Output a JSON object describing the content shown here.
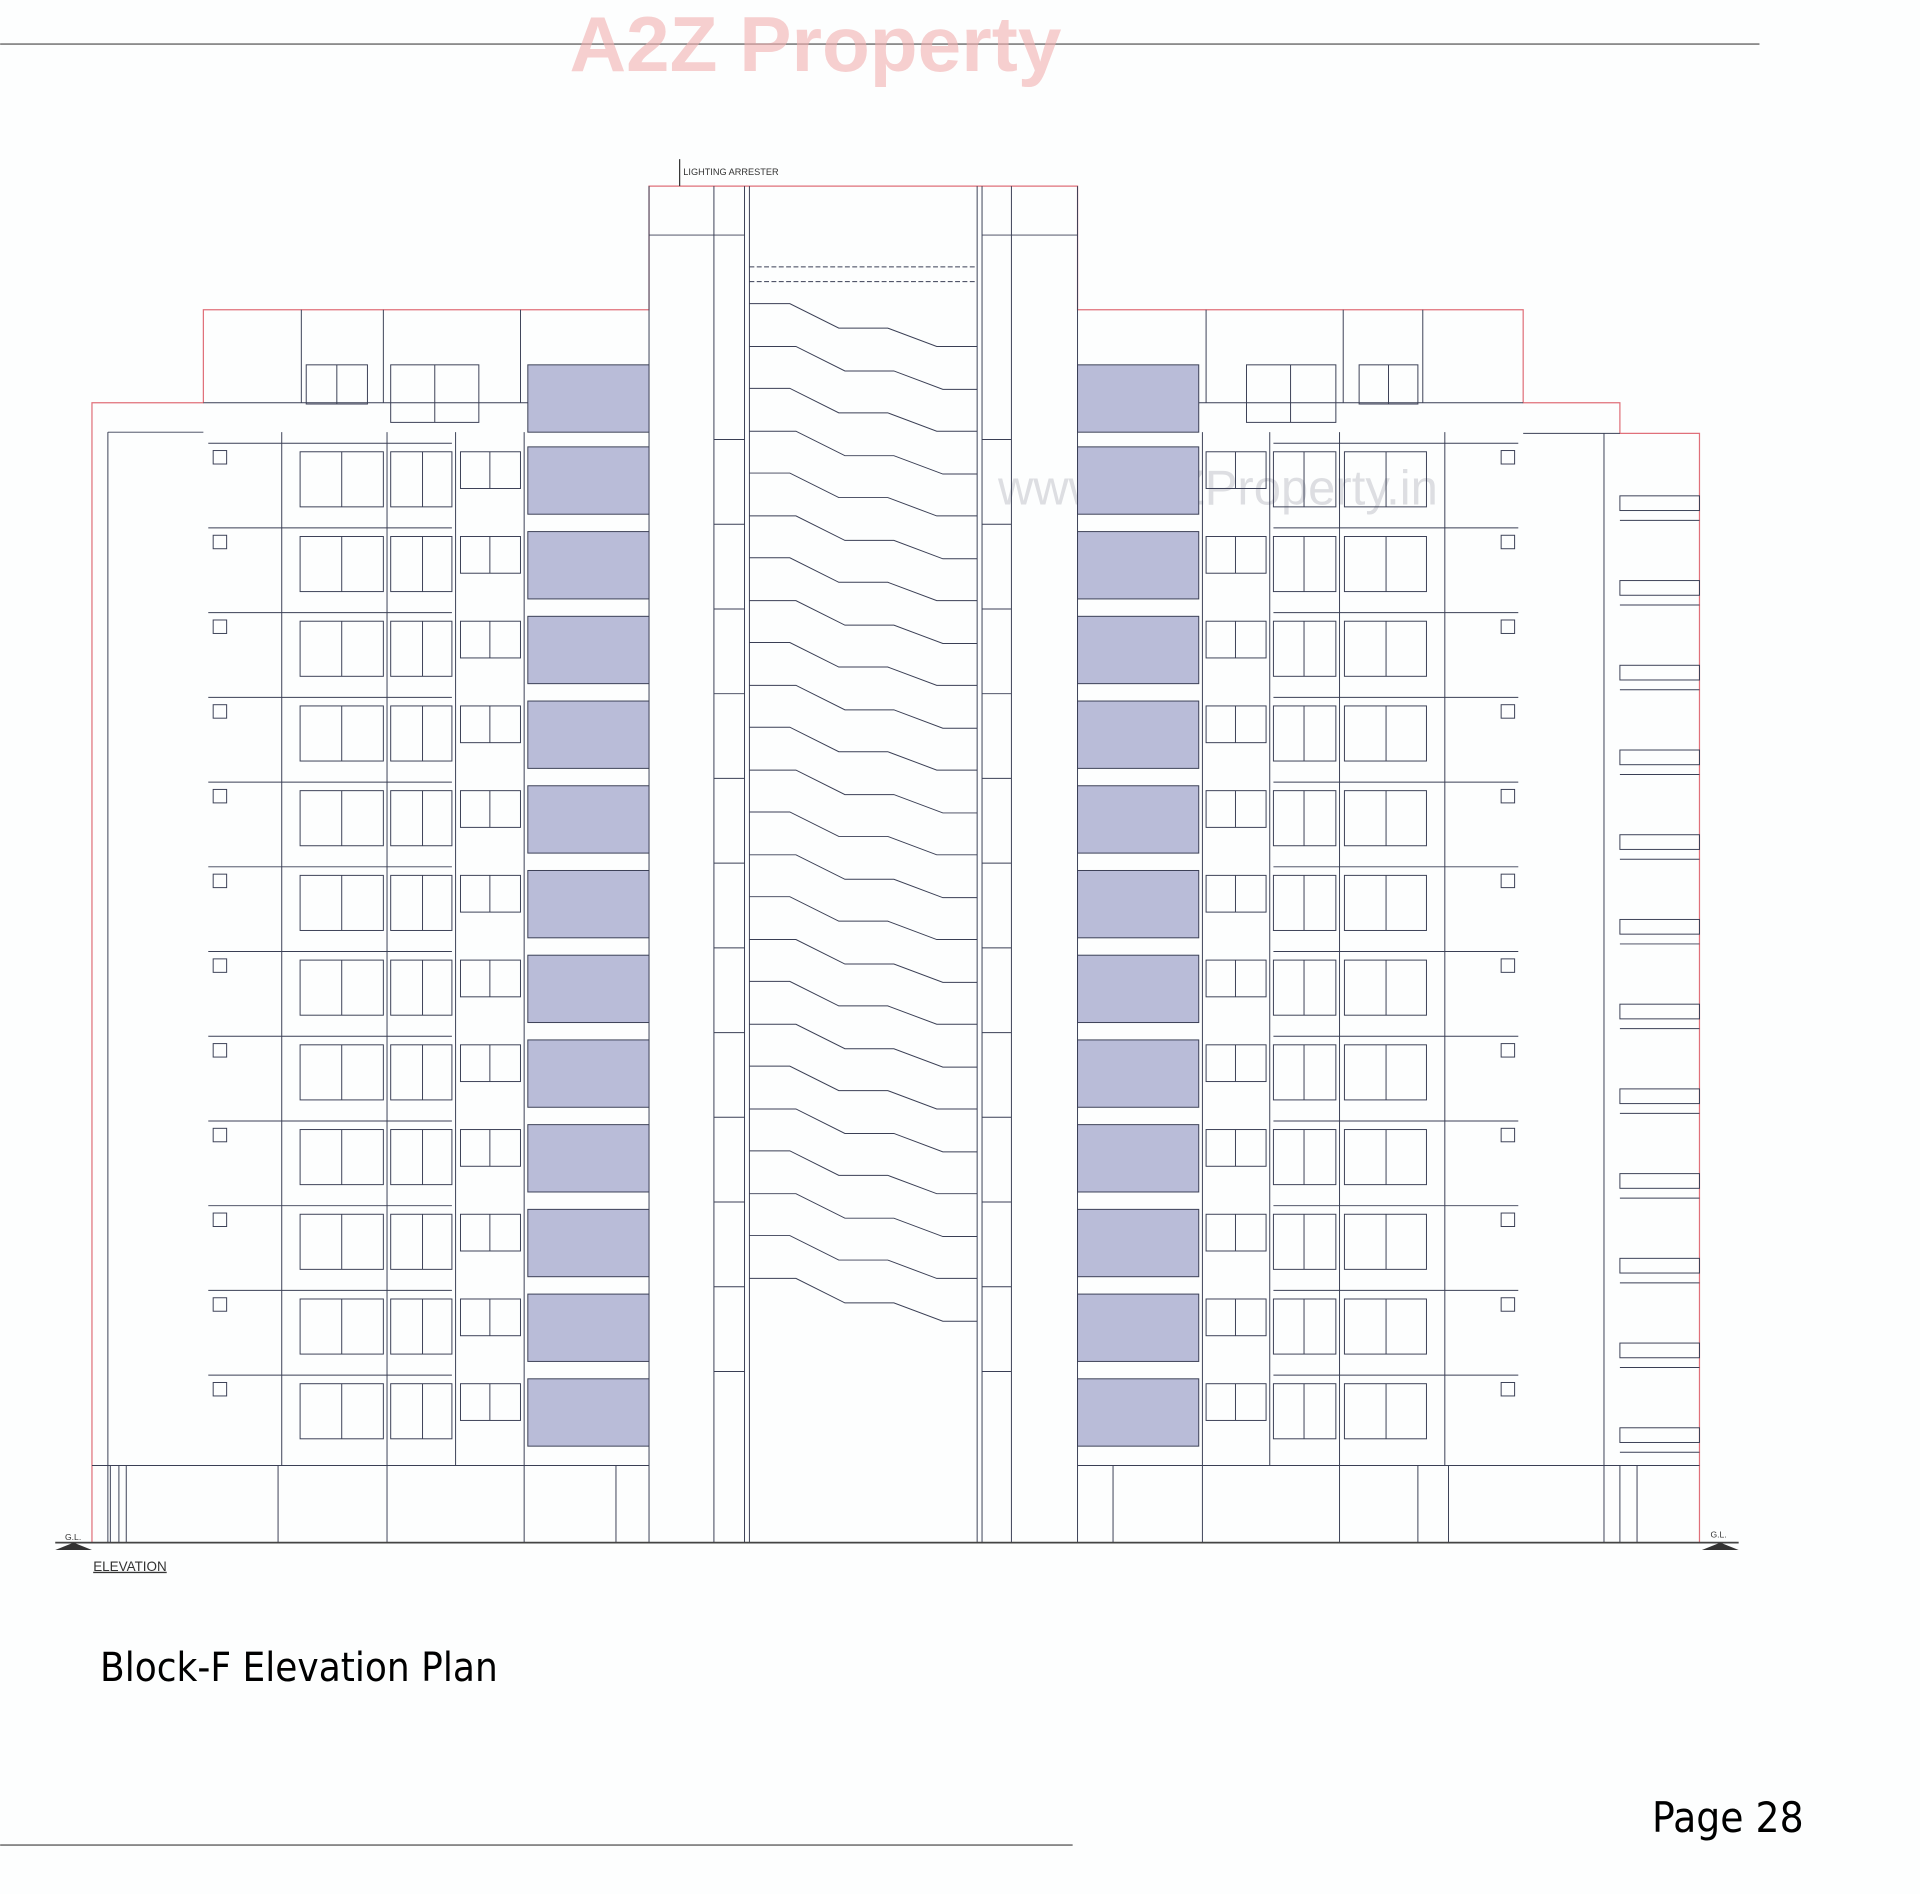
{
  "watermark": {
    "logo_text": "A2Z Property",
    "url_text": "www.A2ZProperty.in"
  },
  "drawing": {
    "lightning_label": "LIGHTING ARRESTER",
    "ground_level_left": "G.L.",
    "ground_level_right": "G.L.",
    "view_label": "ELEVATION",
    "floors": 12
  },
  "caption": "Block-F Elevation Plan",
  "page_number": "Page 28",
  "colors": {
    "line": "#3a3f55",
    "outline": "#e0707a",
    "panel": "#b9bcd8",
    "logo": [
      "#f2a0a0",
      "#a8c8f0",
      "#f5d98a",
      "#a8d8a8"
    ]
  }
}
